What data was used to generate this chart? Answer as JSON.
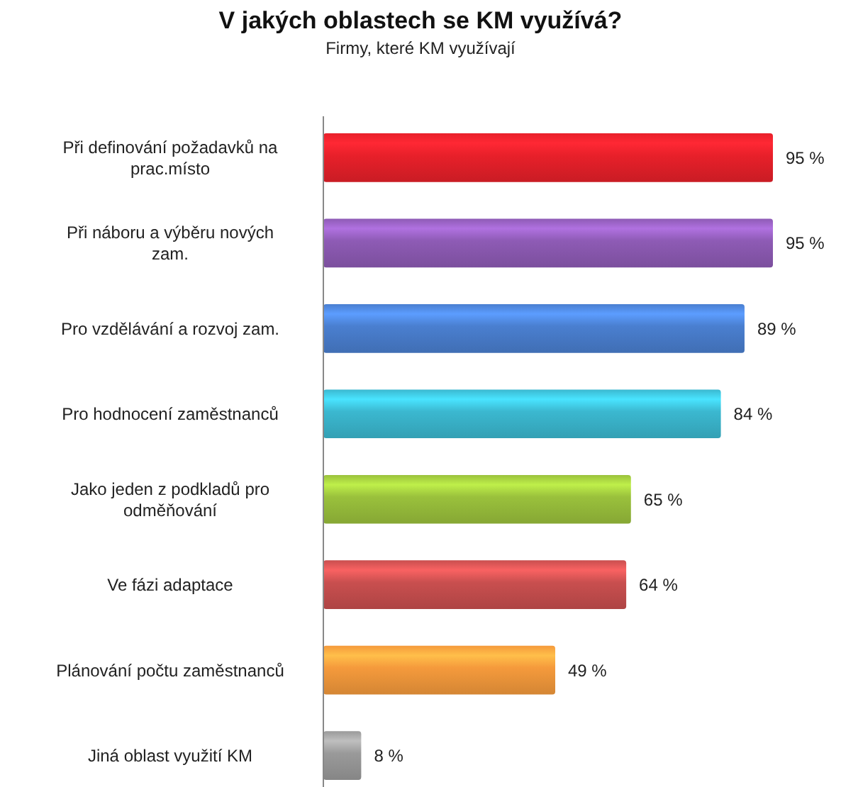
{
  "chart_data": {
    "type": "bar",
    "orientation": "horizontal",
    "title": "V jakých oblastech se KM využívá?",
    "subtitle": "Firmy, které KM využívají",
    "categories": [
      "Při definování požadavků na prac.místo",
      "Při náboru a výběru nových zam.",
      "Pro vzdělávání a rozvoj zam.",
      "Pro hodnocení zaměstnanců",
      "Jako jeden z podkladů pro odměňování",
      "Ve fázi adaptace",
      "Plánování počtu zaměstnanců",
      "Jiná oblast využití KM"
    ],
    "values": [
      95,
      95,
      89,
      84,
      65,
      64,
      49,
      8
    ],
    "colors": [
      "#e8202a",
      "#8e5bb5",
      "#4a7fd0",
      "#3bb8d0",
      "#9ac13c",
      "#c94f4f",
      "#f59a3c",
      "#9a9a9a"
    ],
    "value_labels": [
      "95 %",
      "95 %",
      "89 %",
      "84 %",
      "65 %",
      "64 %",
      "49 %",
      "8 %"
    ]
  }
}
